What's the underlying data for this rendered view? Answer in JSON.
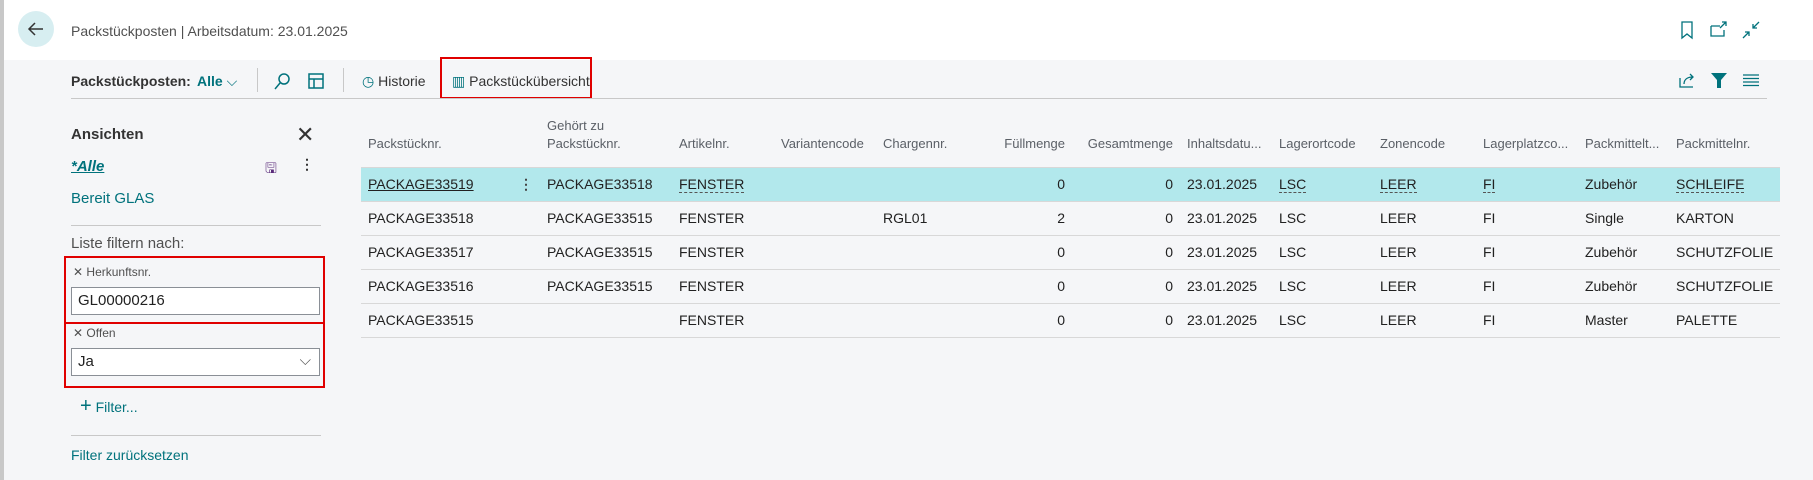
{
  "header": {
    "title": "Packstückposten | Arbeitsdatum: 23.01.2025"
  },
  "toolbar": {
    "label": "Packstückposten:",
    "view": "Alle",
    "history": "Historie",
    "overview": "Packstückübersicht"
  },
  "sidebar": {
    "heading": "Ansichten",
    "views": [
      "*Alle",
      "Bereit GLAS"
    ],
    "filter_heading": "Liste filtern nach:",
    "filters": [
      {
        "label": "Herkunftsnr.",
        "value": "GL00000216"
      },
      {
        "label": "Offen",
        "value": "Ja"
      }
    ],
    "add_filter": "Filter...",
    "reset": "Filter zurücksetzen"
  },
  "table": {
    "columns": [
      "Packstücknr.",
      "Gehört zu Packstücknr.",
      "Artikelnr.",
      "Variantencode",
      "Chargennr.",
      "Füllmenge",
      "Gesamtmenge",
      "Inhaltsdatu...",
      "Lagerortcode",
      "Zonencode",
      "Lagerplatzco...",
      "Packmittelt...",
      "Packmittelnr."
    ],
    "rows": [
      [
        "PACKAGE33519",
        "PACKAGE33518",
        "FENSTER",
        "",
        "",
        "0",
        "0",
        "23.01.2025",
        "LSC",
        "LEER",
        "FI",
        "Zubehör",
        "SCHLEIFE"
      ],
      [
        "PACKAGE33518",
        "PACKAGE33515",
        "FENSTER",
        "",
        "RGL01",
        "2",
        "0",
        "23.01.2025",
        "LSC",
        "LEER",
        "FI",
        "Single",
        "KARTON"
      ],
      [
        "PACKAGE33517",
        "PACKAGE33515",
        "FENSTER",
        "",
        "",
        "0",
        "0",
        "23.01.2025",
        "LSC",
        "LEER",
        "FI",
        "Zubehör",
        "SCHUTZFOLIE"
      ],
      [
        "PACKAGE33516",
        "PACKAGE33515",
        "FENSTER",
        "",
        "",
        "0",
        "0",
        "23.01.2025",
        "LSC",
        "LEER",
        "FI",
        "Zubehör",
        "SCHUTZFOLIE"
      ],
      [
        "PACKAGE33515",
        "",
        "FENSTER",
        "",
        "",
        "0",
        "0",
        "23.01.2025",
        "LSC",
        "LEER",
        "FI",
        "Master",
        "PALETTE"
      ]
    ]
  },
  "colors": {
    "accent": "#00727c",
    "selected_row": "#b2e8ec",
    "highlight": "#e00000"
  }
}
